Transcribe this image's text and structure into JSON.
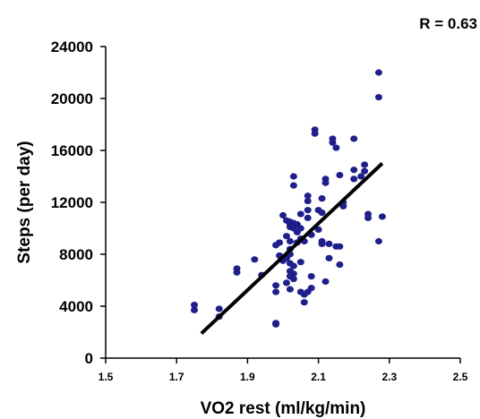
{
  "chart_data": {
    "type": "scatter",
    "title": "",
    "annotation": "R = 0.63",
    "xlabel": "VO2 rest (ml/kg/min)",
    "ylabel": "Steps (per day)",
    "xlim": [
      1.5,
      2.5
    ],
    "ylim": [
      0,
      24000
    ],
    "xticks": [
      "1.5",
      "1.7",
      "1.9",
      "2.1",
      "2.3",
      "2.5"
    ],
    "yticks": [
      "0",
      "4000",
      "8000",
      "12000",
      "16000",
      "20000",
      "24000"
    ],
    "grid": false,
    "legend": "none",
    "point_color": "#1f1f8c",
    "line_color": "#000000",
    "trendline": {
      "x": [
        1.77,
        2.28
      ],
      "y": [
        1900,
        15000
      ]
    },
    "points": [
      [
        1.75,
        4100
      ],
      [
        1.75,
        3700
      ],
      [
        1.82,
        3800
      ],
      [
        1.82,
        3200
      ],
      [
        1.87,
        6900
      ],
      [
        1.87,
        6600
      ],
      [
        1.92,
        7600
      ],
      [
        1.94,
        6400
      ],
      [
        1.98,
        2700
      ],
      [
        1.98,
        2600
      ],
      [
        1.98,
        5100
      ],
      [
        1.98,
        5600
      ],
      [
        1.98,
        8700
      ],
      [
        1.99,
        7900
      ],
      [
        1.99,
        8900
      ],
      [
        2.0,
        11000
      ],
      [
        2.0,
        7500
      ],
      [
        2.01,
        5800
      ],
      [
        2.01,
        7700
      ],
      [
        2.01,
        9400
      ],
      [
        2.01,
        10600
      ],
      [
        2.02,
        5300
      ],
      [
        2.02,
        6300
      ],
      [
        2.02,
        6700
      ],
      [
        2.02,
        7300
      ],
      [
        2.02,
        8000
      ],
      [
        2.02,
        8400
      ],
      [
        2.02,
        9000
      ],
      [
        2.02,
        10100
      ],
      [
        2.02,
        10300
      ],
      [
        2.02,
        10500
      ],
      [
        2.03,
        6100
      ],
      [
        2.03,
        6500
      ],
      [
        2.03,
        7100
      ],
      [
        2.03,
        10000
      ],
      [
        2.03,
        10400
      ],
      [
        2.03,
        13300
      ],
      [
        2.03,
        14000
      ],
      [
        2.04,
        8900
      ],
      [
        2.04,
        9700
      ],
      [
        2.04,
        10300
      ],
      [
        2.05,
        5100
      ],
      [
        2.05,
        7400
      ],
      [
        2.05,
        9200
      ],
      [
        2.05,
        10000
      ],
      [
        2.05,
        11100
      ],
      [
        2.06,
        4300
      ],
      [
        2.06,
        4900
      ],
      [
        2.06,
        9000
      ],
      [
        2.07,
        5100
      ],
      [
        2.07,
        10800
      ],
      [
        2.07,
        11400
      ],
      [
        2.07,
        12100
      ],
      [
        2.07,
        12500
      ],
      [
        2.08,
        5400
      ],
      [
        2.08,
        6300
      ],
      [
        2.08,
        9500
      ],
      [
        2.09,
        17300
      ],
      [
        2.09,
        17600
      ],
      [
        2.1,
        9900
      ],
      [
        2.1,
        11400
      ],
      [
        2.11,
        8800
      ],
      [
        2.11,
        9000
      ],
      [
        2.11,
        11200
      ],
      [
        2.11,
        12300
      ],
      [
        2.12,
        5900
      ],
      [
        2.12,
        13500
      ],
      [
        2.12,
        13800
      ],
      [
        2.13,
        7700
      ],
      [
        2.13,
        8800
      ],
      [
        2.14,
        16600
      ],
      [
        2.14,
        16900
      ],
      [
        2.15,
        8600
      ],
      [
        2.15,
        16200
      ],
      [
        2.16,
        7200
      ],
      [
        2.16,
        8600
      ],
      [
        2.16,
        14100
      ],
      [
        2.17,
        11700
      ],
      [
        2.17,
        12000
      ],
      [
        2.2,
        13800
      ],
      [
        2.2,
        14500
      ],
      [
        2.2,
        16900
      ],
      [
        2.22,
        14000
      ],
      [
        2.23,
        14400
      ],
      [
        2.23,
        14900
      ],
      [
        2.24,
        10800
      ],
      [
        2.24,
        11100
      ],
      [
        2.27,
        9000
      ],
      [
        2.27,
        22000
      ],
      [
        2.27,
        20100
      ],
      [
        2.28,
        10900
      ]
    ]
  }
}
